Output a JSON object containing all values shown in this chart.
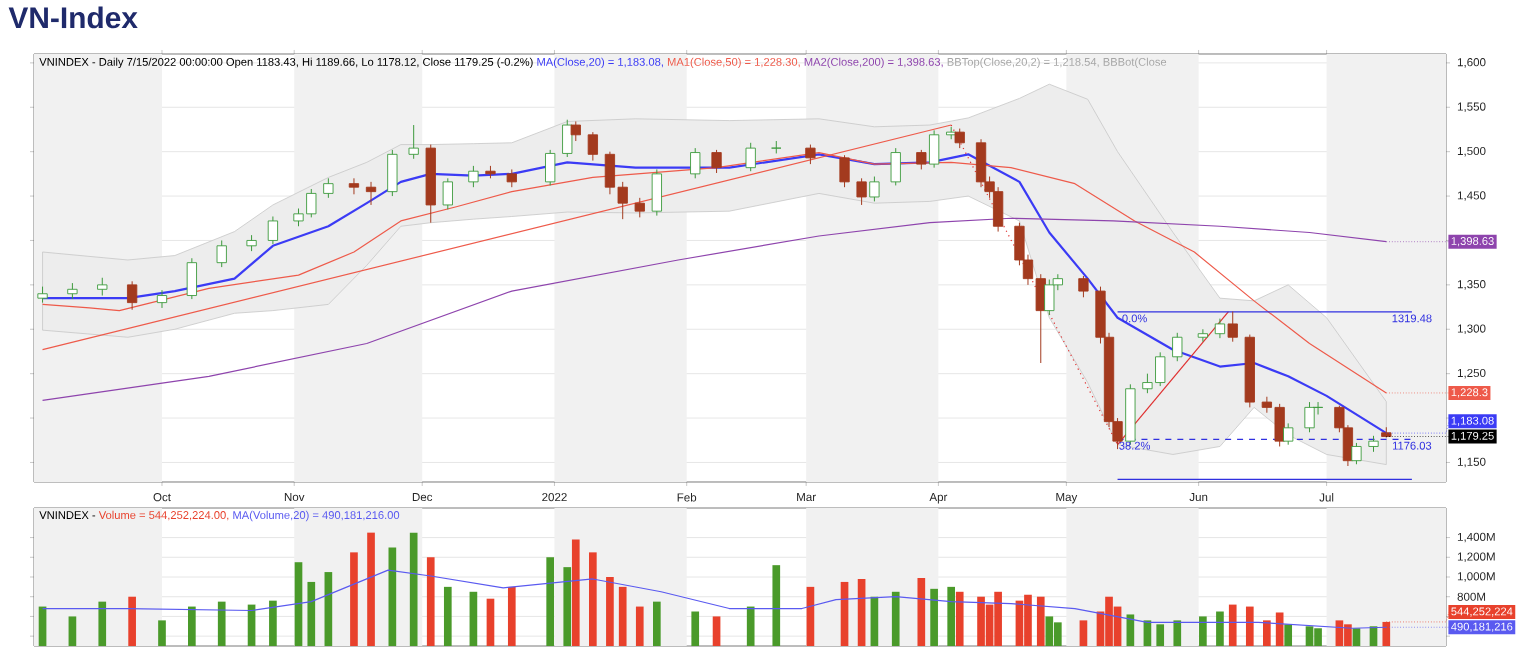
{
  "chart_data": [
    {
      "type": "candlestick",
      "title": "VN-Index",
      "x": [
        "2021-09-03",
        "2021-09-10",
        "2021-09-17",
        "2021-09-24",
        "2021-10-01",
        "2021-10-08",
        "2021-10-15",
        "2021-10-22",
        "2021-10-27",
        "2021-11-02",
        "2021-11-05",
        "2021-11-09",
        "2021-11-15",
        "2021-11-19",
        "2021-11-24",
        "2021-11-29",
        "2021-12-03",
        "2021-12-07",
        "2021-12-13",
        "2021-12-17",
        "2021-12-22",
        "2021-12-31",
        "2022-01-04",
        "2022-01-06",
        "2022-01-10",
        "2022-01-14",
        "2022-01-17",
        "2022-01-21",
        "2022-01-25",
        "2022-02-03",
        "2022-02-08",
        "2022-02-16",
        "2022-02-22",
        "2022-03-02",
        "2022-03-10",
        "2022-03-14",
        "2022-03-17",
        "2022-03-22",
        "2022-03-28",
        "2022-03-31",
        "2022-04-04",
        "2022-04-06",
        "2022-04-11",
        "2022-04-13",
        "2022-04-15",
        "2022-04-20",
        "2022-04-22",
        "2022-04-25",
        "2022-04-27",
        "2022-04-29",
        "2022-05-05",
        "2022-05-09",
        "2022-05-11",
        "2022-05-13",
        "2022-05-16",
        "2022-05-20",
        "2022-05-23",
        "2022-05-27",
        "2022-06-02",
        "2022-06-06",
        "2022-06-09",
        "2022-06-13",
        "2022-06-17",
        "2022-06-20",
        "2022-06-22",
        "2022-06-27",
        "2022-06-29",
        "2022-07-04",
        "2022-07-06",
        "2022-07-08",
        "2022-07-12",
        "2022-07-15"
      ],
      "ohlc": [
        [
          1335,
          1348,
          1330,
          1340
        ],
        [
          1340,
          1352,
          1334,
          1345
        ],
        [
          1345,
          1358,
          1338,
          1350
        ],
        [
          1350,
          1354,
          1322,
          1330
        ],
        [
          1330,
          1344,
          1324,
          1338
        ],
        [
          1338,
          1380,
          1334,
          1375
        ],
        [
          1375,
          1400,
          1370,
          1394
        ],
        [
          1394,
          1406,
          1388,
          1400
        ],
        [
          1400,
          1427,
          1396,
          1422
        ],
        [
          1422,
          1436,
          1416,
          1430
        ],
        [
          1430,
          1458,
          1426,
          1453
        ],
        [
          1453,
          1470,
          1448,
          1464
        ],
        [
          1464,
          1470,
          1452,
          1460
        ],
        [
          1460,
          1466,
          1440,
          1455
        ],
        [
          1455,
          1502,
          1450,
          1497
        ],
        [
          1497,
          1530,
          1492,
          1504
        ],
        [
          1504,
          1508,
          1420,
          1440
        ],
        [
          1440,
          1470,
          1435,
          1466
        ],
        [
          1466,
          1484,
          1460,
          1478
        ],
        [
          1478,
          1484,
          1470,
          1475
        ],
        [
          1475,
          1480,
          1460,
          1466
        ],
        [
          1466,
          1502,
          1462,
          1498
        ],
        [
          1498,
          1536,
          1494,
          1530
        ],
        [
          1530,
          1534,
          1512,
          1519
        ],
        [
          1519,
          1522,
          1490,
          1497
        ],
        [
          1497,
          1500,
          1452,
          1460
        ],
        [
          1460,
          1466,
          1424,
          1442
        ],
        [
          1442,
          1448,
          1426,
          1433
        ],
        [
          1433,
          1480,
          1428,
          1475
        ],
        [
          1475,
          1504,
          1470,
          1499
        ],
        [
          1499,
          1502,
          1476,
          1482
        ],
        [
          1482,
          1510,
          1478,
          1504
        ],
        [
          1504,
          1512,
          1498,
          1504
        ],
        [
          1504,
          1508,
          1486,
          1493
        ],
        [
          1493,
          1496,
          1460,
          1466
        ],
        [
          1466,
          1470,
          1440,
          1449
        ],
        [
          1449,
          1472,
          1444,
          1466
        ],
        [
          1466,
          1504,
          1462,
          1499
        ],
        [
          1499,
          1502,
          1480,
          1486
        ],
        [
          1486,
          1524,
          1482,
          1519
        ],
        [
          1519,
          1528,
          1514,
          1522
        ],
        [
          1522,
          1526,
          1504,
          1510
        ],
        [
          1510,
          1514,
          1460,
          1466
        ],
        [
          1466,
          1472,
          1448,
          1455
        ],
        [
          1455,
          1460,
          1410,
          1416
        ],
        [
          1416,
          1420,
          1372,
          1378
        ],
        [
          1378,
          1384,
          1350,
          1357
        ],
        [
          1357,
          1362,
          1262,
          1321
        ],
        [
          1321,
          1356,
          1316,
          1350
        ],
        [
          1350,
          1362,
          1344,
          1357
        ],
        [
          1357,
          1360,
          1336,
          1343
        ],
        [
          1343,
          1348,
          1284,
          1291
        ],
        [
          1291,
          1296,
          1190,
          1196
        ],
        [
          1196,
          1200,
          1165,
          1174
        ],
        [
          1174,
          1238,
          1170,
          1233
        ],
        [
          1233,
          1250,
          1228,
          1240
        ],
        [
          1240,
          1274,
          1236,
          1269
        ],
        [
          1269,
          1296,
          1264,
          1291
        ],
        [
          1291,
          1300,
          1286,
          1295
        ],
        [
          1295,
          1312,
          1290,
          1306
        ],
        [
          1306,
          1320,
          1286,
          1291
        ],
        [
          1291,
          1294,
          1212,
          1218
        ],
        [
          1218,
          1224,
          1206,
          1212
        ],
        [
          1212,
          1216,
          1168,
          1174
        ],
        [
          1174,
          1194,
          1170,
          1189
        ],
        [
          1189,
          1218,
          1184,
          1212
        ],
        [
          1212,
          1218,
          1204,
          1212
        ],
        [
          1212,
          1214,
          1184,
          1189
        ],
        [
          1189,
          1192,
          1146,
          1152
        ],
        [
          1152,
          1172,
          1148,
          1168
        ],
        [
          1168,
          1180,
          1162,
          1174
        ],
        [
          1183.43,
          1189.66,
          1178.12,
          1179.25
        ]
      ],
      "xlim": [
        "2021-09-01",
        "2022-07-29"
      ],
      "xticks": [
        {
          "value": "2021-10-01",
          "label": "Oct"
        },
        {
          "value": "2021-11-01",
          "label": "Nov"
        },
        {
          "value": "2021-12-01",
          "label": "Dec"
        },
        {
          "value": "2022-01-01",
          "label": "2022"
        },
        {
          "value": "2022-02-01",
          "label": "Feb"
        },
        {
          "value": "2022-03-01",
          "label": "Mar"
        },
        {
          "value": "2022-04-01",
          "label": "Apr"
        },
        {
          "value": "2022-05-01",
          "label": "May"
        },
        {
          "value": "2022-06-01",
          "label": "Jun"
        },
        {
          "value": "2022-07-01",
          "label": "Jul"
        }
      ],
      "ylim": [
        1128,
        1610
      ],
      "yticks": [
        {
          "value": 1150,
          "label": "1,150"
        },
        {
          "value": 1200,
          "label": null
        },
        {
          "value": 1250,
          "label": "1,250"
        },
        {
          "value": 1300,
          "label": "1,300"
        },
        {
          "value": 1350,
          "label": "1,350"
        },
        {
          "value": 1400,
          "label": null
        },
        {
          "value": 1450,
          "label": "1,450"
        },
        {
          "value": 1500,
          "label": "1,500"
        },
        {
          "value": 1550,
          "label": "1,550"
        },
        {
          "value": 1600,
          "label": "1,600"
        }
      ],
      "grid": "y",
      "bands": [
        {
          "axis": "x",
          "from": "2021-09-01",
          "to": "2021-10-01",
          "color": "#f1f1f1"
        },
        {
          "axis": "x",
          "from": "2021-11-01",
          "to": "2021-12-01",
          "color": "#f1f1f1"
        },
        {
          "axis": "x",
          "from": "2022-01-01",
          "to": "2022-02-01",
          "color": "#f1f1f1"
        },
        {
          "axis": "x",
          "from": "2022-03-01",
          "to": "2022-04-01",
          "color": "#f1f1f1"
        },
        {
          "axis": "x",
          "from": "2022-05-01",
          "to": "2022-06-01",
          "color": "#f1f1f1"
        },
        {
          "axis": "x",
          "from": "2022-07-01",
          "to": "2022-07-29",
          "color": "#f1f1f1"
        }
      ],
      "series": [
        {
          "type": "line",
          "name": "MA(Close,20) = 1,183.08,",
          "color": "#3b3bf5",
          "x": [
            "2021-09-03",
            "2021-09-23",
            "2021-10-04",
            "2021-10-18",
            "2021-10-27",
            "2021-11-09",
            "2021-11-18",
            "2021-11-26",
            "2021-12-03",
            "2021-12-13",
            "2021-12-22",
            "2022-01-04",
            "2022-01-20",
            "2022-02-11",
            "2022-03-04",
            "2022-03-17",
            "2022-03-30",
            "2022-04-08",
            "2022-04-20",
            "2022-04-27",
            "2022-05-06",
            "2022-05-13",
            "2022-05-26",
            "2022-06-06",
            "2022-06-14",
            "2022-06-22",
            "2022-07-01",
            "2022-07-15"
          ],
          "values": [
            1335,
            1335,
            1343,
            1357,
            1394,
            1416,
            1442,
            1466,
            1475,
            1473,
            1475,
            1488,
            1482,
            1482,
            1497,
            1486,
            1488,
            1497,
            1466,
            1409,
            1357,
            1313,
            1277,
            1258,
            1262,
            1247,
            1225,
            1183.08
          ],
          "upper": [
            1387,
            1378,
            1383,
            1410,
            1440,
            1471,
            1488,
            1508,
            1508,
            1509,
            1510,
            1534,
            1537,
            1535,
            1537,
            1528,
            1530,
            1538,
            1560,
            1576,
            1559,
            1500,
            1409,
            1335,
            1332,
            1350,
            1313,
            1218.54
          ],
          "lower": [
            1299,
            1291,
            1300,
            1318,
            1321,
            1328,
            1372,
            1416,
            1420,
            1424,
            1427,
            1432,
            1431,
            1433,
            1453,
            1442,
            1444,
            1450,
            1422,
            1313,
            1240,
            1170,
            1159,
            1168,
            1212,
            1181,
            1159,
            1147.62
          ],
          "value_labels": [
            null,
            null,
            null,
            null,
            null,
            null,
            null,
            null,
            null,
            null,
            null,
            null,
            null,
            null,
            null,
            null,
            null,
            null,
            null,
            null,
            null,
            null,
            null,
            null,
            null,
            null,
            null,
            "1,183.08"
          ]
        },
        {
          "type": "line",
          "name": "MA1(Close,50) = 1,228.30,",
          "color": "#ee5a4a",
          "x": [
            "2021-09-03",
            "2021-09-14",
            "2021-09-21",
            "2021-10-12",
            "2021-11-02",
            "2021-11-15",
            "2021-11-26",
            "2021-12-09",
            "2021-12-22",
            "2022-01-10",
            "2022-02-08",
            "2022-03-04",
            "2022-03-17",
            "2022-04-04",
            "2022-04-18",
            "2022-05-03",
            "2022-05-17",
            "2022-05-31",
            "2022-06-14",
            "2022-06-27",
            "2022-07-15"
          ],
          "values": [
            1328,
            1324,
            1321,
            1346,
            1361,
            1387,
            1422,
            1438,
            1455,
            1471,
            1482,
            1499,
            1486,
            1488,
            1482,
            1464,
            1422,
            1387,
            1332,
            1284,
            1228.3
          ],
          "value_labels": [
            null,
            null,
            null,
            null,
            null,
            null,
            null,
            null,
            null,
            null,
            null,
            null,
            null,
            null,
            null,
            null,
            null,
            null,
            null,
            null,
            "1,228.3"
          ]
        },
        {
          "type": "line",
          "name": "MA2(Close,200) = 1,398.63,",
          "color": "#8e44ad",
          "x": [
            "2021-09-03",
            "2021-10-12",
            "2021-11-18",
            "2021-12-22",
            "2022-01-30",
            "2022-03-04",
            "2022-03-30",
            "2022-04-18",
            "2022-05-12",
            "2022-06-06",
            "2022-06-27",
            "2022-07-15"
          ],
          "values": [
            1220,
            1247,
            1284,
            1343,
            1378,
            1405,
            1420,
            1425,
            1422,
            1416,
            1409,
            1398.63
          ],
          "value_labels": [
            null,
            null,
            null,
            null,
            null,
            null,
            null,
            null,
            null,
            null,
            null,
            "1,398.63"
          ]
        },
        {
          "type": "line",
          "color": "#ee5a4a",
          "x": [
            "2021-09-03",
            "2022-04-04"
          ],
          "values": [
            1277,
            1530
          ]
        },
        {
          "type": "line",
          "color": "#e03030",
          "line_style": "dotted",
          "x": [
            "2022-04-04",
            "2022-05-13"
          ],
          "values": [
            1530,
            1170
          ]
        },
        {
          "type": "line",
          "color": "#e03030",
          "x": [
            "2022-05-13",
            "2022-06-08"
          ],
          "values": [
            1170,
            1320
          ]
        },
        {
          "type": "line",
          "color": "#3030e0",
          "x": [
            "2022-05-13",
            "2022-07-21"
          ],
          "values": [
            1319.48,
            1319.48
          ]
        },
        {
          "type": "line",
          "color": "#3030e0",
          "line_style": "dashed",
          "x": [
            "2022-05-13",
            "2022-07-21"
          ],
          "values": [
            1176.03,
            1176.03
          ]
        },
        {
          "type": "line",
          "color": "#3030e0",
          "x": [
            "2022-05-13",
            "2022-07-21"
          ],
          "values": [
            1131,
            1131
          ]
        }
      ],
      "annotations": [
        "VNINDEX - Daily 7/15/2022 00:00:00 Open 1183.43, Hi 1189.66, Lo 1178.12, Close 1179.25 (-0.2%)",
        "BBTop(Close,20,2) = 1,218.54, BBBot(Close",
        {
          "text": "0.0%",
          "x": "2022-05-17",
          "y": 1319.48
        },
        {
          "text": "1319.48",
          "x": "2022-07-21",
          "y": 1319.48
        },
        {
          "text": "38.2%",
          "x": "2022-05-17",
          "y": 1176.03
        },
        {
          "text": "1176.03",
          "x": "2022-07-21",
          "y": 1176.03
        },
        {
          "text": "1,179.25",
          "x": "2022-07-15",
          "y": 1179.25
        }
      ]
    },
    {
      "type": "bar",
      "x": [
        "2021-09-03",
        "2021-09-10",
        "2021-09-17",
        "2021-09-24",
        "2021-10-01",
        "2021-10-08",
        "2021-10-15",
        "2021-10-22",
        "2021-10-27",
        "2021-11-02",
        "2021-11-05",
        "2021-11-09",
        "2021-11-15",
        "2021-11-19",
        "2021-11-24",
        "2021-11-29",
        "2021-12-03",
        "2021-12-07",
        "2021-12-13",
        "2021-12-17",
        "2021-12-22",
        "2021-12-31",
        "2022-01-04",
        "2022-01-06",
        "2022-01-10",
        "2022-01-14",
        "2022-01-17",
        "2022-01-21",
        "2022-01-25",
        "2022-02-03",
        "2022-02-08",
        "2022-02-16",
        "2022-02-22",
        "2022-03-02",
        "2022-03-10",
        "2022-03-14",
        "2022-03-17",
        "2022-03-22",
        "2022-03-28",
        "2022-03-31",
        "2022-04-04",
        "2022-04-06",
        "2022-04-11",
        "2022-04-13",
        "2022-04-15",
        "2022-04-20",
        "2022-04-22",
        "2022-04-25",
        "2022-04-27",
        "2022-04-29",
        "2022-05-05",
        "2022-05-09",
        "2022-05-11",
        "2022-05-13",
        "2022-05-16",
        "2022-05-20",
        "2022-05-23",
        "2022-05-27",
        "2022-06-02",
        "2022-06-06",
        "2022-06-09",
        "2022-06-13",
        "2022-06-17",
        "2022-06-20",
        "2022-06-22",
        "2022-06-27",
        "2022-06-29",
        "2022-07-04",
        "2022-07-06",
        "2022-07-08",
        "2022-07-12",
        "2022-07-15"
      ],
      "xlim": [
        "2021-09-01",
        "2022-07-29"
      ],
      "ylim": [
        300000000,
        1700000000
      ],
      "yticks": [
        {
          "value": 400000000,
          "label": null
        },
        {
          "value": 600000000,
          "label": null
        },
        {
          "value": 800000000,
          "label": "800M"
        },
        {
          "value": 1000000000,
          "label": "1,000M"
        },
        {
          "value": 1200000000,
          "label": "1,200M"
        },
        {
          "value": 1400000000,
          "label": "1,400M"
        }
      ],
      "tick_labels": "y",
      "grid": "y",
      "bands": [
        {
          "axis": "x",
          "from": "2021-09-01",
          "to": "2021-10-01",
          "color": "#f1f1f1"
        },
        {
          "axis": "x",
          "from": "2021-11-01",
          "to": "2021-12-01",
          "color": "#f1f1f1"
        },
        {
          "axis": "x",
          "from": "2022-01-01",
          "to": "2022-02-01",
          "color": "#f1f1f1"
        },
        {
          "axis": "x",
          "from": "2022-03-01",
          "to": "2022-04-01",
          "color": "#f1f1f1"
        },
        {
          "axis": "x",
          "from": "2022-05-01",
          "to": "2022-06-01",
          "color": "#f1f1f1"
        },
        {
          "axis": "x",
          "from": "2022-07-01",
          "to": "2022-07-29",
          "color": "#f1f1f1"
        }
      ],
      "series": [
        {
          "type": "bar",
          "name": "Volume = 544,252,224.00,",
          "color": "#e8412c",
          "values": [
            700000000,
            600000000,
            750000000,
            800000000,
            560000000,
            700000000,
            750000000,
            720000000,
            760000000,
            1150000000,
            950000000,
            1050000000,
            1250000000,
            1450000000,
            1300000000,
            1450000000,
            1200000000,
            900000000,
            850000000,
            780000000,
            900000000,
            1200000000,
            1100000000,
            1380000000,
            1250000000,
            1000000000,
            900000000,
            700000000,
            750000000,
            650000000,
            600000000,
            700000000,
            1120000000,
            900000000,
            950000000,
            980000000,
            800000000,
            850000000,
            990000000,
            880000000,
            900000000,
            850000000,
            800000000,
            720000000,
            850000000,
            760000000,
            820000000,
            800000000,
            600000000,
            540000000,
            560000000,
            650000000,
            800000000,
            700000000,
            620000000,
            560000000,
            520000000,
            560000000,
            600000000,
            650000000,
            720000000,
            700000000,
            560000000,
            640000000,
            520000000,
            500000000,
            480000000,
            560000000,
            520000000,
            480000000,
            500000000,
            544252224
          ],
          "colors": [
            "#4a9a2a",
            "#4a9a2a",
            "#4a9a2a",
            "#e8412c",
            "#4a9a2a",
            "#4a9a2a",
            "#4a9a2a",
            "#4a9a2a",
            "#4a9a2a",
            "#4a9a2a",
            "#4a9a2a",
            "#4a9a2a",
            "#e8412c",
            "#e8412c",
            "#4a9a2a",
            "#4a9a2a",
            "#e8412c",
            "#4a9a2a",
            "#4a9a2a",
            "#e8412c",
            "#e8412c",
            "#4a9a2a",
            "#4a9a2a",
            "#e8412c",
            "#e8412c",
            "#e8412c",
            "#e8412c",
            "#e8412c",
            "#4a9a2a",
            "#4a9a2a",
            "#e8412c",
            "#4a9a2a",
            "#4a9a2a",
            "#e8412c",
            "#e8412c",
            "#e8412c",
            "#4a9a2a",
            "#4a9a2a",
            "#e8412c",
            "#4a9a2a",
            "#4a9a2a",
            "#e8412c",
            "#e8412c",
            "#e8412c",
            "#e8412c",
            "#e8412c",
            "#e8412c",
            "#e8412c",
            "#4a9a2a",
            "#4a9a2a",
            "#e8412c",
            "#e8412c",
            "#e8412c",
            "#e8412c",
            "#4a9a2a",
            "#4a9a2a",
            "#4a9a2a",
            "#4a9a2a",
            "#4a9a2a",
            "#4a9a2a",
            "#e8412c",
            "#e8412c",
            "#e8412c",
            "#e8412c",
            "#4a9a2a",
            "#4a9a2a",
            "#4a9a2a",
            "#e8412c",
            "#e8412c",
            "#4a9a2a",
            "#4a9a2a",
            "#e8412c"
          ],
          "value_labels": [
            null,
            null,
            null,
            null,
            null,
            null,
            null,
            null,
            null,
            null,
            null,
            null,
            null,
            null,
            null,
            null,
            null,
            null,
            null,
            null,
            null,
            null,
            null,
            null,
            null,
            null,
            null,
            null,
            null,
            null,
            null,
            null,
            null,
            null,
            null,
            null,
            null,
            null,
            null,
            null,
            null,
            null,
            null,
            null,
            null,
            null,
            null,
            null,
            null,
            null,
            null,
            null,
            null,
            null,
            null,
            null,
            null,
            null,
            null,
            null,
            null,
            null,
            null,
            null,
            null,
            null,
            null,
            null,
            null,
            null,
            null,
            "544,252,224"
          ]
        },
        {
          "type": "line",
          "name": "MA(Volume,20) = 490,181,216.00",
          "color": "#5a5af0",
          "x": [
            "2021-09-03",
            "2021-09-23",
            "2021-10-22",
            "2021-11-05",
            "2021-11-23",
            "2021-12-03",
            "2021-12-20",
            "2022-01-10",
            "2022-01-26",
            "2022-02-11",
            "2022-02-28",
            "2022-03-08",
            "2022-03-22",
            "2022-04-04",
            "2022-04-18",
            "2022-05-03",
            "2022-05-20",
            "2022-06-15",
            "2022-07-07",
            "2022-07-15"
          ],
          "values": [
            680000000,
            680000000,
            660000000,
            750000000,
            1070000000,
            1010000000,
            890000000,
            980000000,
            850000000,
            680000000,
            680000000,
            770000000,
            800000000,
            750000000,
            730000000,
            680000000,
            540000000,
            540000000,
            480000000,
            490181216
          ],
          "value_labels": [
            null,
            null,
            null,
            null,
            null,
            null,
            null,
            null,
            null,
            null,
            null,
            null,
            null,
            null,
            null,
            null,
            null,
            null,
            null,
            "490,181,216"
          ]
        }
      ],
      "annotations": [
        "VNINDEX -"
      ]
    }
  ]
}
